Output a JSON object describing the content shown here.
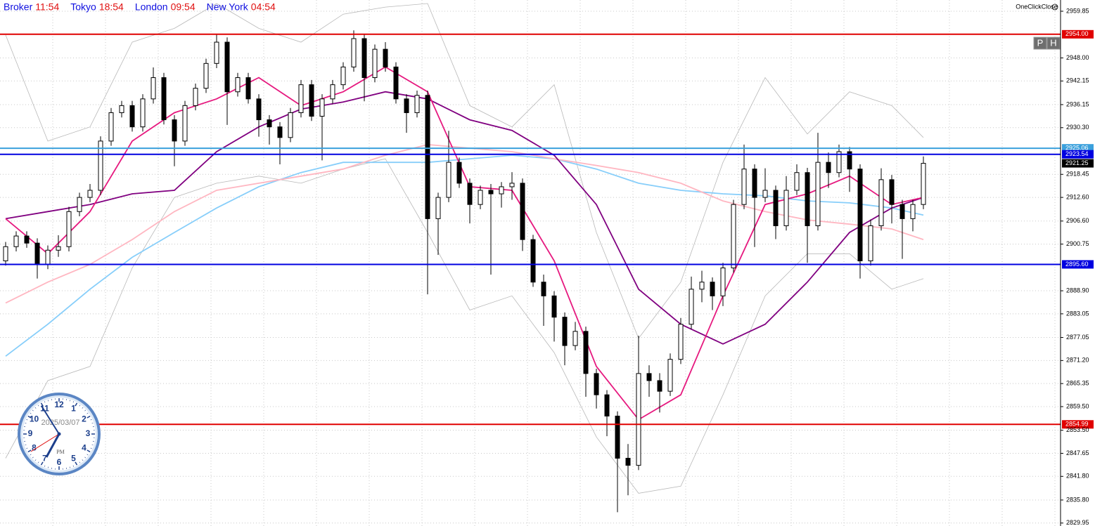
{
  "chart_data": {
    "type": "candlestick",
    "header": [
      {
        "label": "Broker",
        "time": "11:54"
      },
      {
        "label": "Tokyo",
        "time": "18:54"
      },
      {
        "label": "London",
        "time": "09:54"
      },
      {
        "label": "New York",
        "time": "04:54"
      }
    ],
    "one_click_close": "OneClickClose",
    "buttons": [
      "P",
      "H"
    ],
    "clock": {
      "numbers": [
        "12",
        "1",
        "2",
        "3",
        "4",
        "5",
        "6",
        "7",
        "8",
        "9",
        "10",
        "11"
      ],
      "date": "2025/03/07",
      "ampm": "PM"
    },
    "ylim": [
      2829.2,
      2962.7
    ],
    "yticks": [
      2959.85,
      {
        "value": 2948.0,
        "label": "2948.00"
      },
      2942.15,
      2936.15,
      {
        "value": 2930.3,
        "label": "2930.30"
      },
      2918.45,
      {
        "value": 2912.6,
        "label": "2912.60"
      },
      {
        "value": 2906.6,
        "label": "2906.60"
      },
      2900.75,
      {
        "value": 2888.9,
        "label": "2888.90"
      },
      2883.05,
      2877.05,
      {
        "value": 2871.2,
        "label": "2871.20"
      },
      2865.35,
      {
        "value": 2859.5,
        "label": "2859.50"
      },
      {
        "value": 2853.5,
        "label": "2853.50"
      },
      2847.65,
      {
        "value": 2841.8,
        "label": "2841.80"
      },
      {
        "value": 2835.8,
        "label": "2835.80"
      },
      2829.95
    ],
    "grid": true,
    "hlines": [
      {
        "value": 2954.0,
        "label": "2954.00",
        "color": "#e00000"
      },
      {
        "value": 2925.06,
        "label": "2925.06",
        "color": "#3aa0dc"
      },
      {
        "value": 2923.54,
        "label": "2923.54",
        "color": "#0000e0"
      },
      {
        "value": 2895.6,
        "label": "2895.60",
        "color": "#0000e0"
      },
      {
        "value": 2854.99,
        "label": "2854.99",
        "color": "#e00000"
      }
    ],
    "current_price": 2921.25,
    "ohlc": [
      [
        2896.5,
        2901.3,
        2895.3,
        2900.1
      ],
      [
        2900.1,
        2904.0,
        2898.9,
        2902.8
      ],
      [
        2902.8,
        2904.0,
        2899.8,
        2901.0
      ],
      [
        2901.0,
        2902.2,
        2892.0,
        2895.6
      ],
      [
        2895.6,
        2900.4,
        2894.4,
        2899.2
      ],
      [
        2899.2,
        2903.0,
        2897.5,
        2900.1
      ],
      [
        2900.1,
        2910.2,
        2898.9,
        2909.0
      ],
      [
        2909.0,
        2913.8,
        2907.8,
        2912.6
      ],
      [
        2912.6,
        2916.0,
        2911.4,
        2914.4
      ],
      [
        2914.4,
        2928.1,
        2913.2,
        2926.9
      ],
      [
        2926.9,
        2935.3,
        2925.7,
        2934.1
      ],
      [
        2934.1,
        2937.1,
        2932.9,
        2935.9
      ],
      [
        2935.9,
        2937.1,
        2929.3,
        2930.5
      ],
      [
        2930.5,
        2938.8,
        2929.3,
        2937.6
      ],
      [
        2937.6,
        2945.6,
        2936.4,
        2943.0
      ],
      [
        2943.0,
        2944.2,
        2931.1,
        2932.3
      ],
      [
        2932.3,
        2933.5,
        2920.5,
        2926.9
      ],
      [
        2926.9,
        2937.1,
        2925.7,
        2935.9
      ],
      [
        2935.9,
        2941.5,
        2934.7,
        2940.3
      ],
      [
        2940.3,
        2947.8,
        2939.1,
        2946.6
      ],
      [
        2946.6,
        2954.0,
        2945.4,
        2952.0
      ],
      [
        2952.0,
        2953.2,
        2931.0,
        2939.4
      ],
      [
        2939.4,
        2944.2,
        2938.2,
        2943.0
      ],
      [
        2943.0,
        2944.2,
        2936.4,
        2937.6
      ],
      [
        2937.6,
        2938.8,
        2928.0,
        2932.3
      ],
      [
        2932.3,
        2933.5,
        2926.0,
        2930.5
      ],
      [
        2930.5,
        2931.7,
        2921.0,
        2927.8
      ],
      [
        2927.8,
        2935.3,
        2926.6,
        2934.1
      ],
      [
        2934.1,
        2942.4,
        2932.9,
        2941.2
      ],
      [
        2941.2,
        2942.4,
        2932.0,
        2933.2
      ],
      [
        2933.2,
        2938.8,
        2922.0,
        2937.6
      ],
      [
        2937.6,
        2942.4,
        2936.4,
        2941.2
      ],
      [
        2941.2,
        2946.9,
        2940.0,
        2945.7
      ],
      [
        2945.7,
        2955.0,
        2944.5,
        2952.9
      ],
      [
        2952.9,
        2954.1,
        2937.0,
        2943.0
      ],
      [
        2943.0,
        2951.4,
        2941.8,
        2950.2
      ],
      [
        2950.2,
        2952.0,
        2944.5,
        2945.7
      ],
      [
        2945.7,
        2946.9,
        2936.4,
        2937.6
      ],
      [
        2937.6,
        2938.8,
        2929.0,
        2934.1
      ],
      [
        2934.1,
        2939.7,
        2932.9,
        2938.5
      ],
      [
        2938.5,
        2939.7,
        2888.0,
        2907.2
      ],
      [
        2907.2,
        2913.8,
        2898.0,
        2912.6
      ],
      [
        2912.6,
        2929.5,
        2911.4,
        2921.5
      ],
      [
        2921.5,
        2922.7,
        2915.0,
        2916.2
      ],
      [
        2916.2,
        2917.4,
        2906.0,
        2910.8
      ],
      [
        2910.8,
        2915.6,
        2909.6,
        2914.4
      ],
      [
        2914.4,
        2916.0,
        2893.0,
        2913.5
      ],
      [
        2913.5,
        2916.5,
        2910.0,
        2915.3
      ],
      [
        2915.3,
        2919.0,
        2912.0,
        2916.2
      ],
      [
        2916.2,
        2917.4,
        2899.0,
        2901.9
      ],
      [
        2901.9,
        2903.1,
        2889.9,
        2891.1
      ],
      [
        2891.1,
        2893.0,
        2880.0,
        2887.6
      ],
      [
        2887.6,
        2888.8,
        2876.0,
        2882.2
      ],
      [
        2882.2,
        2883.4,
        2870.0,
        2875.0
      ],
      [
        2875.0,
        2881.0,
        2873.8,
        2878.6
      ],
      [
        2878.6,
        2879.8,
        2862.0,
        2867.9
      ],
      [
        2867.9,
        2869.1,
        2859.0,
        2862.5
      ],
      [
        2862.5,
        2863.7,
        2852.0,
        2857.1
      ],
      [
        2857.1,
        2858.3,
        2832.7,
        2846.4
      ],
      [
        2846.4,
        2850.0,
        2837.0,
        2844.6
      ],
      [
        2844.6,
        2877.5,
        2843.4,
        2867.9
      ],
      [
        2867.9,
        2870.0,
        2862.0,
        2866.1
      ],
      [
        2866.1,
        2868.0,
        2858.0,
        2863.4
      ],
      [
        2863.4,
        2873.0,
        2862.2,
        2871.5
      ],
      [
        2871.5,
        2882.0,
        2870.3,
        2880.4
      ],
      [
        2880.4,
        2892.5,
        2879.2,
        2889.3
      ],
      [
        2889.3,
        2894.0,
        2886.0,
        2891.1
      ],
      [
        2891.1,
        2892.3,
        2884.0,
        2887.6
      ],
      [
        2887.6,
        2896.0,
        2885.0,
        2894.7
      ],
      [
        2894.7,
        2912.0,
        2893.5,
        2910.8
      ],
      [
        2910.8,
        2926.0,
        2909.6,
        2919.8
      ],
      [
        2919.8,
        2921.0,
        2900.0,
        2912.6
      ],
      [
        2912.6,
        2920.0,
        2911.4,
        2914.4
      ],
      [
        2914.4,
        2915.6,
        2902.0,
        2905.4
      ],
      [
        2905.4,
        2918.0,
        2904.2,
        2914.4
      ],
      [
        2914.4,
        2921.0,
        2913.2,
        2918.9
      ],
      [
        2918.9,
        2920.1,
        2896.0,
        2905.4
      ],
      [
        2905.4,
        2929.0,
        2904.2,
        2921.5
      ],
      [
        2921.5,
        2924.0,
        2915.0,
        2918.9
      ],
      [
        2918.9,
        2926.0,
        2917.7,
        2924.2
      ],
      [
        2924.2,
        2925.4,
        2914.0,
        2919.8
      ],
      [
        2919.8,
        2921.0,
        2892.0,
        2896.5
      ],
      [
        2896.5,
        2907.0,
        2895.3,
        2905.4
      ],
      [
        2905.4,
        2920.0,
        2904.2,
        2917.1
      ],
      [
        2917.1,
        2918.3,
        2906.0,
        2910.8
      ],
      [
        2910.8,
        2912.0,
        2897.0,
        2907.2
      ],
      [
        2907.2,
        2912.0,
        2904.0,
        2910.8
      ],
      [
        2910.8,
        2923.0,
        2909.6,
        2921.25
      ]
    ],
    "line_x": [
      0,
      4,
      8,
      12,
      16,
      20,
      24,
      28,
      32,
      36,
      40,
      44,
      48,
      52,
      56,
      60,
      64,
      68,
      72,
      76,
      80,
      84,
      87
    ],
    "lines": [
      {
        "color": "#b8b8b8",
        "values": [
          2953.8,
          2926.9,
          2930.5,
          2952.0,
          2955.5,
          2961.8,
          2955.5,
          2952.0,
          2959.1,
          2960.9,
          2961.8,
          2935.9,
          2930.5,
          2941.2,
          2903.7,
          2876.8,
          2891.1,
          2921.5,
          2943.0,
          2928.7,
          2939.4,
          2935.9,
          2927.8
        ]
      },
      {
        "color": "#b8b8b8",
        "values": [
          2846.4,
          2866.1,
          2869.7,
          2894.7,
          2912.6,
          2916.2,
          2918.0,
          2916.2,
          2919.8,
          2922.4,
          2903.7,
          2884.0,
          2887.6,
          2873.2,
          2851.8,
          2837.5,
          2839.3,
          2862.5,
          2887.6,
          2898.3,
          2898.3,
          2889.3,
          2892.0
        ]
      },
      {
        "color": "#87cefa",
        "values": [
          2872.3,
          2880.4,
          2889.3,
          2897.4,
          2903.7,
          2909.9,
          2915.3,
          2918.9,
          2921.5,
          2921.5,
          2921.5,
          2922.4,
          2923.3,
          2922.4,
          2919.8,
          2916.2,
          2914.4,
          2913.5,
          2913.0,
          2911.7,
          2911.2,
          2909.9,
          2908.1
        ]
      },
      {
        "color": "#ffb6c1",
        "values": [
          2885.8,
          2891.1,
          2895.6,
          2901.9,
          2909.0,
          2914.4,
          2916.2,
          2918.0,
          2919.8,
          2923.3,
          2926.0,
          2925.1,
          2924.2,
          2922.4,
          2920.7,
          2918.9,
          2916.2,
          2911.7,
          2909.0,
          2906.9,
          2905.8,
          2904.6,
          2901.9
        ]
      },
      {
        "color": "#800080",
        "values": [
          2907.2,
          2909.0,
          2910.8,
          2913.5,
          2914.4,
          2924.2,
          2930.5,
          2935.0,
          2936.8,
          2939.4,
          2937.6,
          2932.3,
          2929.6,
          2923.3,
          2910.8,
          2889.3,
          2880.4,
          2875.4,
          2880.4,
          2891.1,
          2903.7,
          2909.9,
          2912.6
        ]
      },
      {
        "color": "#e6197f",
        "values": [
          2907.2,
          2898.3,
          2909.0,
          2926.9,
          2934.1,
          2937.6,
          2943.0,
          2935.9,
          2939.4,
          2945.7,
          2939.4,
          2915.3,
          2914.4,
          2896.5,
          2869.7,
          2856.2,
          2862.5,
          2887.6,
          2910.8,
          2913.5,
          2918.0,
          2910.8,
          2912.6
        ]
      }
    ]
  }
}
